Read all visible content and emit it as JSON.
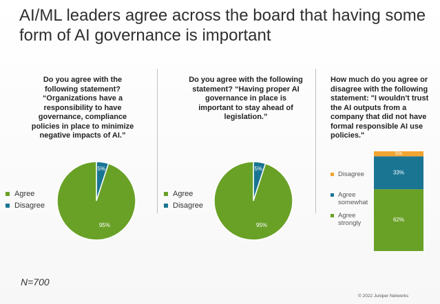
{
  "title": "AI/ML leaders agree across the board that having some form of AI governance is important",
  "colors": {
    "agree": "#69a127",
    "disagree": "#1a7593",
    "somewhat": "#1a7593",
    "bar_disagree": "#f0a431"
  },
  "chart_data": [
    {
      "type": "pie",
      "title": "Do you agree with the following statement? “Organizations have a responsibility to have governance, compliance policies in place to minimize negative impacts of AI.”",
      "labels": [
        "Agree",
        "Disagree"
      ],
      "values": [
        95,
        5
      ],
      "value_labels": [
        "95%",
        "5%"
      ],
      "legend_position": "left"
    },
    {
      "type": "pie",
      "title": "Do you agree with the following statement? “Having proper AI governance in place is important to stay ahead of legislation.”",
      "labels": [
        "Agree",
        "Disagree"
      ],
      "values": [
        95,
        5
      ],
      "value_labels": [
        "95%",
        "5%"
      ],
      "legend_position": "left"
    },
    {
      "type": "bar",
      "stacked": true,
      "title": "How much do you agree or disagree with the following statement: \"I wouldn't trust the AI outputs from a company that did not have formal responsible AI use policies.\"",
      "categories": [
        ""
      ],
      "series": [
        {
          "name": "Agree strongly",
          "values": [
            62
          ],
          "value_label": "62%"
        },
        {
          "name": "Agree somewhat",
          "values": [
            33
          ],
          "value_label": "33%"
        },
        {
          "name": "Disagree",
          "values": [
            5
          ],
          "value_label": "5%"
        }
      ],
      "ylim": [
        0,
        100
      ],
      "legend_position": "left"
    }
  ],
  "note": "N=700",
  "copyright": "© 2022 Juniper Networks"
}
